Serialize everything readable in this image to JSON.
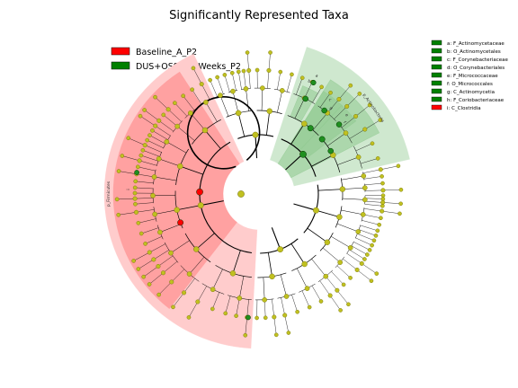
{
  "title": "Significantly Represented Taxa",
  "legend_main": [
    {
      "label": "Baseline_A_P2",
      "color": "#ff0000"
    },
    {
      "label": "DUS+OSS_24_Weeks_P2",
      "color": "#008000"
    }
  ],
  "legend_taxa": [
    {
      "label": "a: F_Actinomycetaceae",
      "color": "#008000"
    },
    {
      "label": "b: O_Actinomycetales",
      "color": "#008000"
    },
    {
      "label": "c: F_Corynebacteriaceae",
      "color": "#008000"
    },
    {
      "label": "d: O_Corynebacteriales",
      "color": "#008000"
    },
    {
      "label": "e: F_Micrococcaceae",
      "color": "#008000"
    },
    {
      "label": "f: O_Micrococcales",
      "color": "#008000"
    },
    {
      "label": "g: C_Actinomycetia",
      "color": "#008000"
    },
    {
      "label": "h: F_Coriobacteriaceae",
      "color": "#008000"
    },
    {
      "label": "i: C_Clostridia",
      "color": "#ff0000"
    }
  ],
  "sector_labels": {
    "firmicutes": "p_Firmicutes",
    "actinobacteria": "p_Actinobacteria",
    "i": "i",
    "a": "a",
    "b": "b",
    "c": "c",
    "d": "d",
    "e": "e",
    "f": "f"
  },
  "colors": {
    "red_fill": "#ff9999",
    "red_light": "#ffcccc",
    "green_fill": "#8fc98f",
    "green_light": "#cfe8cf",
    "node": "#c0c020",
    "node_stroke": "#6b6b00",
    "green_node": "#1f8f1f",
    "red_node": "#ff0000"
  }
}
